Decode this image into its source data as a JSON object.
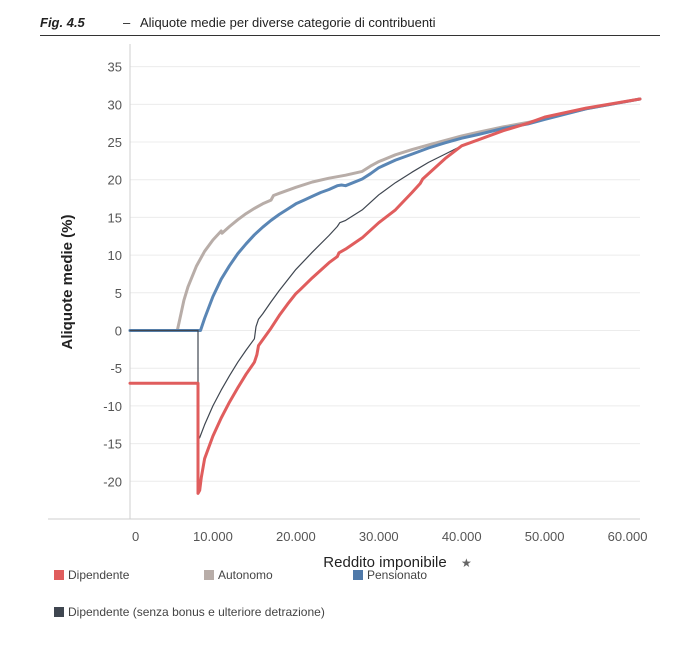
{
  "header": {
    "fig_label": "Fig. 4.5",
    "dash": "–",
    "title": "Aliquote medie per diverse categorie di contribuenti"
  },
  "chart_data": {
    "type": "line",
    "xlabel": "Reddito imponibile",
    "xlabel_icon": "pin-icon",
    "ylabel": "Aliquote medie (%)",
    "xlim": [
      0,
      61500
    ],
    "ylim": [
      -25,
      38
    ],
    "x_ticks": [
      0,
      10000,
      20000,
      30000,
      40000,
      50000,
      60000
    ],
    "x_tick_labels": [
      "0",
      "10.000",
      "20.000",
      "30.000",
      "40.000",
      "50.000",
      "60.000"
    ],
    "y_ticks": [
      35,
      30,
      25,
      20,
      15,
      10,
      5,
      0,
      -5,
      -10,
      -15,
      -20
    ],
    "y_tick_labels": [
      "35",
      "30",
      "25",
      "20",
      "15",
      "10",
      "5",
      "0",
      "-5",
      "-10",
      "-15",
      "-20"
    ],
    "grid": "horizontal",
    "series": [
      {
        "name": "Dipendente",
        "color": "#e05d5d",
        "points": [
          [
            0,
            -7
          ],
          [
            8200,
            -7
          ],
          [
            8200,
            -21.6
          ],
          [
            8400,
            -21.2
          ],
          [
            8600,
            -19.5
          ],
          [
            9000,
            -17
          ],
          [
            10000,
            -14
          ],
          [
            11000,
            -11.6
          ],
          [
            12000,
            -9.5
          ],
          [
            13000,
            -7.6
          ],
          [
            14000,
            -5.8
          ],
          [
            15000,
            -4.2
          ],
          [
            15300,
            -3.2
          ],
          [
            15500,
            -2
          ],
          [
            17000,
            0.3
          ],
          [
            18000,
            2
          ],
          [
            19000,
            3.5
          ],
          [
            20000,
            4.9
          ],
          [
            20500,
            5.4
          ],
          [
            22000,
            7
          ],
          [
            24000,
            9
          ],
          [
            25000,
            9.8
          ],
          [
            25200,
            10.3
          ],
          [
            26000,
            10.8
          ],
          [
            28000,
            12.3
          ],
          [
            30000,
            14.3
          ],
          [
            32000,
            16
          ],
          [
            34000,
            18.3
          ],
          [
            35000,
            19.5
          ],
          [
            35300,
            20.1
          ],
          [
            38000,
            22.8
          ],
          [
            40000,
            24.5
          ],
          [
            42000,
            25.3
          ],
          [
            45000,
            26.5
          ],
          [
            48000,
            27.5
          ],
          [
            50000,
            28.3
          ],
          [
            55000,
            29.5
          ],
          [
            61500,
            30.7
          ]
        ]
      },
      {
        "name": "Autonomo",
        "color": "#b8ada8",
        "points": [
          [
            0,
            0
          ],
          [
            5700,
            0
          ],
          [
            6000,
            1.5
          ],
          [
            6500,
            4
          ],
          [
            7000,
            5.8
          ],
          [
            8000,
            8.5
          ],
          [
            9000,
            10.5
          ],
          [
            10000,
            12
          ],
          [
            11000,
            13.2
          ],
          [
            11100,
            12.9
          ],
          [
            12000,
            13.8
          ],
          [
            13000,
            14.7
          ],
          [
            14000,
            15.5
          ],
          [
            15000,
            16.2
          ],
          [
            16000,
            16.8
          ],
          [
            17000,
            17.3
          ],
          [
            17300,
            17.9
          ],
          [
            18000,
            18.2
          ],
          [
            20000,
            19
          ],
          [
            22000,
            19.7
          ],
          [
            24000,
            20.2
          ],
          [
            26000,
            20.6
          ],
          [
            28000,
            21.1
          ],
          [
            29000,
            21.8
          ],
          [
            30000,
            22.4
          ],
          [
            32000,
            23.3
          ],
          [
            34000,
            24
          ],
          [
            36000,
            24.6
          ],
          [
            38000,
            25.2
          ],
          [
            40000,
            25.8
          ],
          [
            42000,
            26.3
          ],
          [
            45000,
            27
          ],
          [
            48000,
            27.6
          ],
          [
            50000,
            28.1
          ],
          [
            55000,
            29.4
          ],
          [
            61500,
            30.7
          ]
        ]
      },
      {
        "name": "Pensionato",
        "color": "#5a86b5",
        "points": [
          [
            0,
            0
          ],
          [
            8500,
            0
          ],
          [
            9000,
            1.6
          ],
          [
            10000,
            4.5
          ],
          [
            11000,
            6.8
          ],
          [
            12000,
            8.6
          ],
          [
            13000,
            10.2
          ],
          [
            14000,
            11.5
          ],
          [
            15000,
            12.7
          ],
          [
            16000,
            13.7
          ],
          [
            17000,
            14.6
          ],
          [
            18000,
            15.4
          ],
          [
            19000,
            16.1
          ],
          [
            20000,
            16.8
          ],
          [
            21000,
            17.3
          ],
          [
            22000,
            17.8
          ],
          [
            23000,
            18.3
          ],
          [
            24000,
            18.7
          ],
          [
            25000,
            19.2
          ],
          [
            25500,
            19.3
          ],
          [
            26000,
            19.2
          ],
          [
            28000,
            20.1
          ],
          [
            29000,
            20.8
          ],
          [
            30000,
            21.6
          ],
          [
            32000,
            22.6
          ],
          [
            34000,
            23.4
          ],
          [
            36000,
            24.2
          ],
          [
            38000,
            24.9
          ],
          [
            40000,
            25.5
          ],
          [
            42000,
            26
          ],
          [
            45000,
            26.8
          ],
          [
            48000,
            27.4
          ],
          [
            50000,
            28
          ],
          [
            55000,
            29.4
          ],
          [
            61500,
            30.7
          ]
        ]
      },
      {
        "name": "Dipendente (senza bonus e ulteriore detrazione)",
        "color": "#3f4650",
        "points": [
          [
            0,
            0
          ],
          [
            8200,
            0
          ],
          [
            8200,
            -14.5
          ],
          [
            8400,
            -14.2
          ],
          [
            9000,
            -12.5
          ],
          [
            10000,
            -10
          ],
          [
            11000,
            -7.9
          ],
          [
            12000,
            -6
          ],
          [
            13000,
            -4.2
          ],
          [
            14000,
            -2.6
          ],
          [
            15000,
            -1.1
          ],
          [
            15200,
            0.5
          ],
          [
            15500,
            1.5
          ],
          [
            16000,
            2.2
          ],
          [
            17000,
            3.8
          ],
          [
            18000,
            5.3
          ],
          [
            20000,
            8.1
          ],
          [
            22000,
            10.4
          ],
          [
            24000,
            12.6
          ],
          [
            25000,
            13.8
          ],
          [
            25300,
            14.3
          ],
          [
            26000,
            14.6
          ],
          [
            28000,
            16
          ],
          [
            30000,
            18
          ],
          [
            32000,
            19.6
          ],
          [
            34000,
            21
          ],
          [
            36000,
            22.3
          ],
          [
            38000,
            23.4
          ],
          [
            40000,
            24.5
          ],
          [
            42000,
            25.3
          ],
          [
            45000,
            26.5
          ],
          [
            48000,
            27.5
          ],
          [
            50000,
            28.3
          ],
          [
            55000,
            29.5
          ],
          [
            61500,
            30.7
          ]
        ]
      }
    ],
    "legend": [
      {
        "label": "Dipendente",
        "color": "#e05d5d"
      },
      {
        "label": "Autonomo",
        "color": "#b8ada8"
      },
      {
        "label": "Pensionato",
        "color": "#4f79a9"
      },
      {
        "label": "Dipendente (senza bonus e ulteriore detrazione)",
        "color": "#3f4650"
      }
    ]
  }
}
